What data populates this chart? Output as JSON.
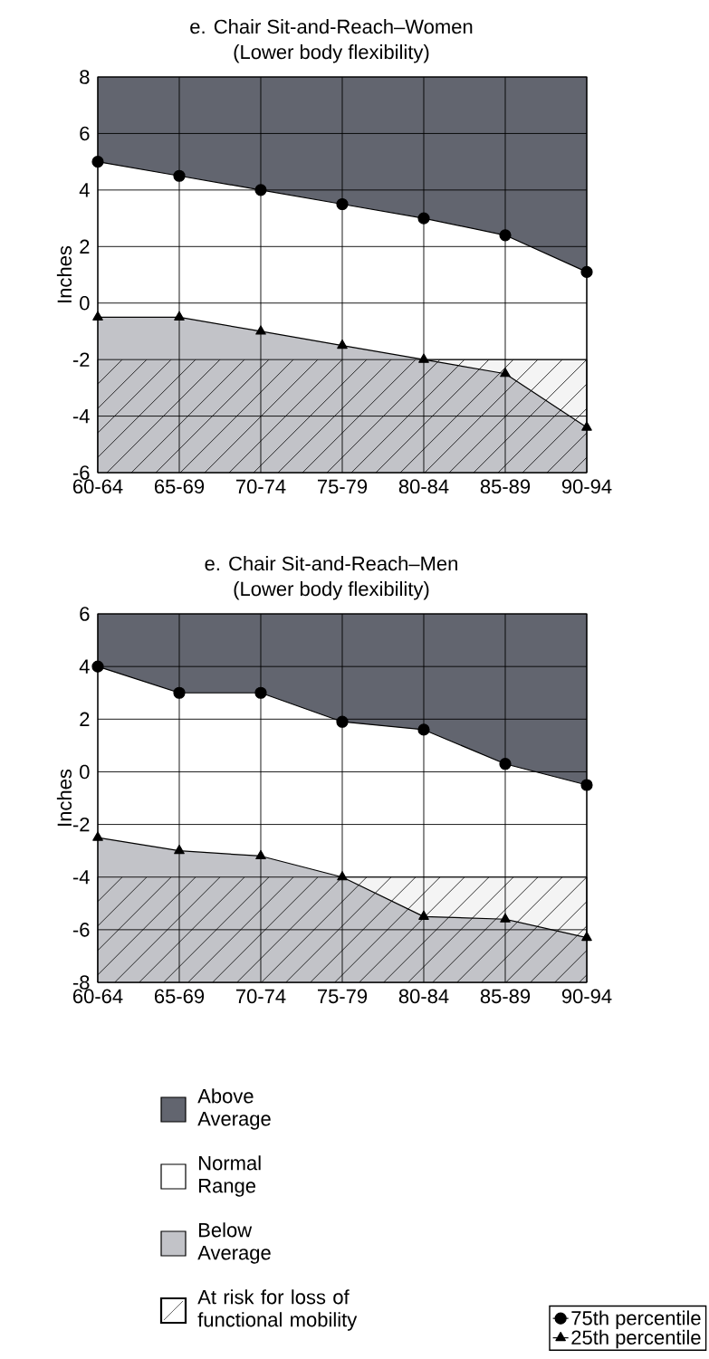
{
  "chart_data": [
    {
      "type": "line",
      "title": "e. Chair Sit-and-Reach–Women",
      "subtitle": "(Lower body flexibility)",
      "ylabel": "Inches",
      "categories": [
        "60-64",
        "65-69",
        "70-74",
        "75-79",
        "80-84",
        "85-89",
        "90-94"
      ],
      "series": [
        {
          "color": "#000000",
          "marker": "circle",
          "values": [
            5,
            4.5,
            4,
            3.5,
            3,
            2.4,
            1.1
          ],
          "lower": [
            5,
            4.5,
            4,
            3.5,
            3,
            2.4,
            1.1
          ],
          "upper": [
            8,
            8,
            8,
            8,
            8,
            8,
            8
          ]
        },
        {
          "color": "#000000",
          "marker": "triangle",
          "values": [
            -0.5,
            -0.5,
            -1,
            -1.5,
            -2,
            -2.5,
            -4.4
          ],
          "lower": [
            -6,
            -6,
            -6,
            -6,
            -6,
            -6,
            -6
          ],
          "upper": [
            -0.5,
            -0.5,
            -1,
            -1.5,
            -2,
            -2.5,
            -4.4
          ]
        }
      ],
      "ylim": [
        -6,
        8
      ],
      "yticks": [
        -6,
        -4,
        -2,
        0,
        2,
        4,
        6,
        8
      ],
      "grid": true,
      "bands": [
        {
          "axis": "y",
          "from": -6,
          "to": -2,
          "color": "#f4f4f4"
        }
      ]
    },
    {
      "type": "line",
      "title": "e. Chair Sit-and-Reach–Men",
      "subtitle": "(Lower body flexibility)",
      "ylabel": "Inches",
      "categories": [
        "60-64",
        "65-69",
        "70-74",
        "75-79",
        "80-84",
        "85-89",
        "90-94"
      ],
      "series": [
        {
          "name": "75th percentile",
          "color": "#000000",
          "marker": "circle",
          "values": [
            4,
            3,
            3,
            1.9,
            1.6,
            0.3,
            -0.5
          ],
          "lower": [
            4,
            3,
            3,
            1.9,
            1.6,
            0.3,
            -0.5
          ],
          "upper": [
            6,
            6,
            6,
            6,
            6,
            6,
            6
          ]
        },
        {
          "name": "25th percentile",
          "color": "#000000",
          "marker": "triangle",
          "values": [
            -2.5,
            -3,
            -3.2,
            -4,
            -5.5,
            -5.6,
            -6.3
          ],
          "lower": [
            -8,
            -8,
            -8,
            -8,
            -8,
            -8,
            -8
          ],
          "upper": [
            -2.5,
            -3,
            -3.2,
            -4,
            -5.5,
            -5.6,
            -6.3
          ]
        }
      ],
      "ylim": [
        -8,
        6
      ],
      "yticks": [
        -8,
        -6,
        -4,
        -2,
        0,
        2,
        4,
        6
      ],
      "grid": true,
      "legend": "bottom right",
      "bands": [
        {
          "axis": "y",
          "from": -8,
          "to": -4,
          "color": "#f4f4f4",
          "label": "At risk for loss of functional mobility"
        }
      ],
      "annotations": [
        "Above Average",
        "Normal Range",
        "Below Average"
      ]
    }
  ]
}
